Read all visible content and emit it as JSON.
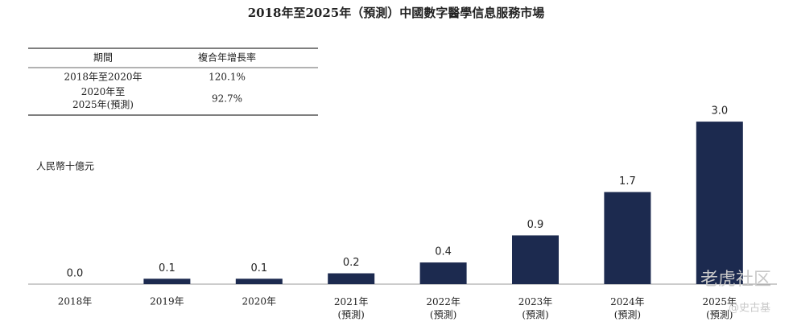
{
  "chart_data": {
    "type": "bar",
    "title": "2018年至2025年（預測）中國數字醫學信息服務市場",
    "y_label": "人民幣十億元",
    "categories": [
      "2018年",
      "2019年",
      "2020年",
      "2021年\n(預測)",
      "2022年\n(預測)",
      "2023年\n(預測)",
      "2024年\n(預測)",
      "2025年\n(預測)"
    ],
    "values": [
      0.0,
      0.1,
      0.1,
      0.2,
      0.4,
      0.9,
      1.7,
      3.0
    ],
    "value_labels": [
      "0.0",
      "0.1",
      "0.1",
      "0.2",
      "0.4",
      "0.9",
      "1.7",
      "3.0"
    ],
    "color": "#1c2a4f",
    "table": {
      "header": [
        "期間",
        "複合年增長率"
      ],
      "rows": [
        [
          "2018年至2020年",
          "120.1%"
        ],
        [
          "2020年至\n2025年(預測)",
          "92.7%"
        ]
      ]
    },
    "watermark": {
      "logo": "老虎社区",
      "author": "@史古基"
    }
  }
}
